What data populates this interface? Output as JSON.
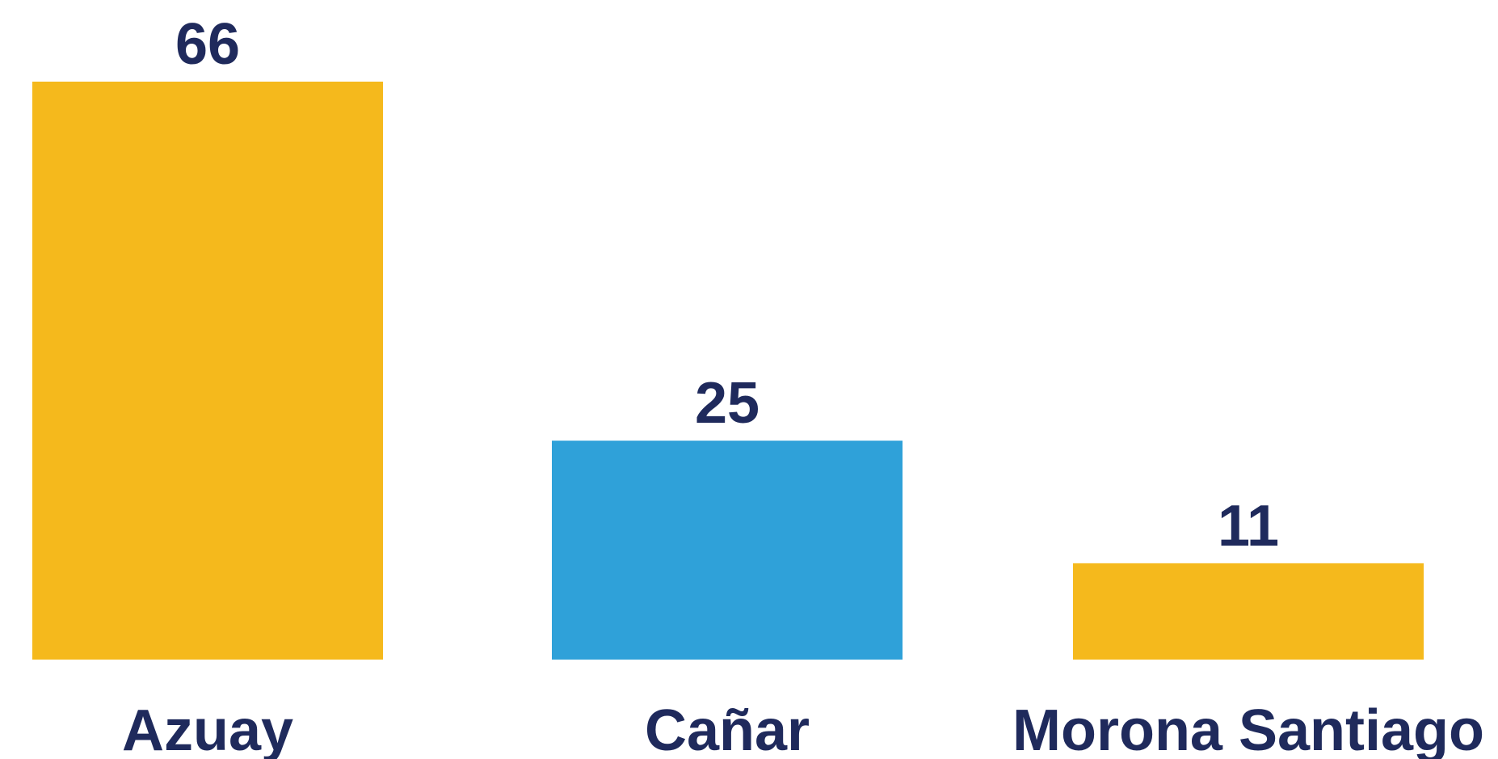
{
  "chart_data": {
    "type": "bar",
    "categories": [
      "Azuay",
      "Cañar",
      "Morona Santiago"
    ],
    "values": [
      66,
      25,
      11
    ],
    "colors": [
      "#F5B91C",
      "#2FA1D9",
      "#F5B91C"
    ],
    "label_color": "#1F2A5C",
    "title": "",
    "xlabel": "",
    "ylabel": "",
    "ylim": [
      0,
      66
    ],
    "grid": false,
    "legend": "none"
  }
}
